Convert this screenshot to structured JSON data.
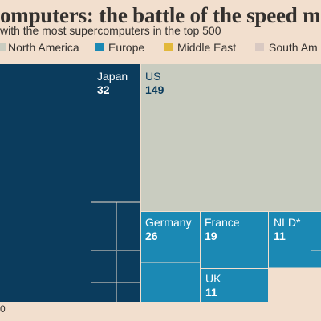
{
  "title": "omputers: the battle of the speed ma",
  "subtitle": "with the most supercomputers in the top 500",
  "footnote": "0",
  "legend": [
    {
      "label": "North America",
      "color": "#c9ccc0"
    },
    {
      "label": "Europe",
      "color": "#1b89b4"
    },
    {
      "label": "Middle East",
      "color": "#e2b83b"
    },
    {
      "label": "South Am",
      "color": "#d9c9c2"
    }
  ],
  "colors": {
    "asia": "#0b3c5d",
    "north_america": "#c9ccc0",
    "europe": "#1b89b4",
    "divider": "#f2dfce",
    "label_light": "#ffffff",
    "label_dark": "#0b3c5d"
  },
  "chart_data": {
    "type": "treemap",
    "cells": [
      {
        "label": "",
        "value": null,
        "region": "asia"
      },
      {
        "label": "Japan",
        "value": 32,
        "region": "asia"
      },
      {
        "label": "US",
        "value": 149,
        "region": "north_america"
      },
      {
        "label": "Germany",
        "value": 26,
        "region": "europe"
      },
      {
        "label": "France",
        "value": 19,
        "region": "europe"
      },
      {
        "label": "NLD*",
        "value": 11,
        "region": "europe"
      },
      {
        "label": "UK",
        "value": 11,
        "region": "europe"
      }
    ]
  }
}
